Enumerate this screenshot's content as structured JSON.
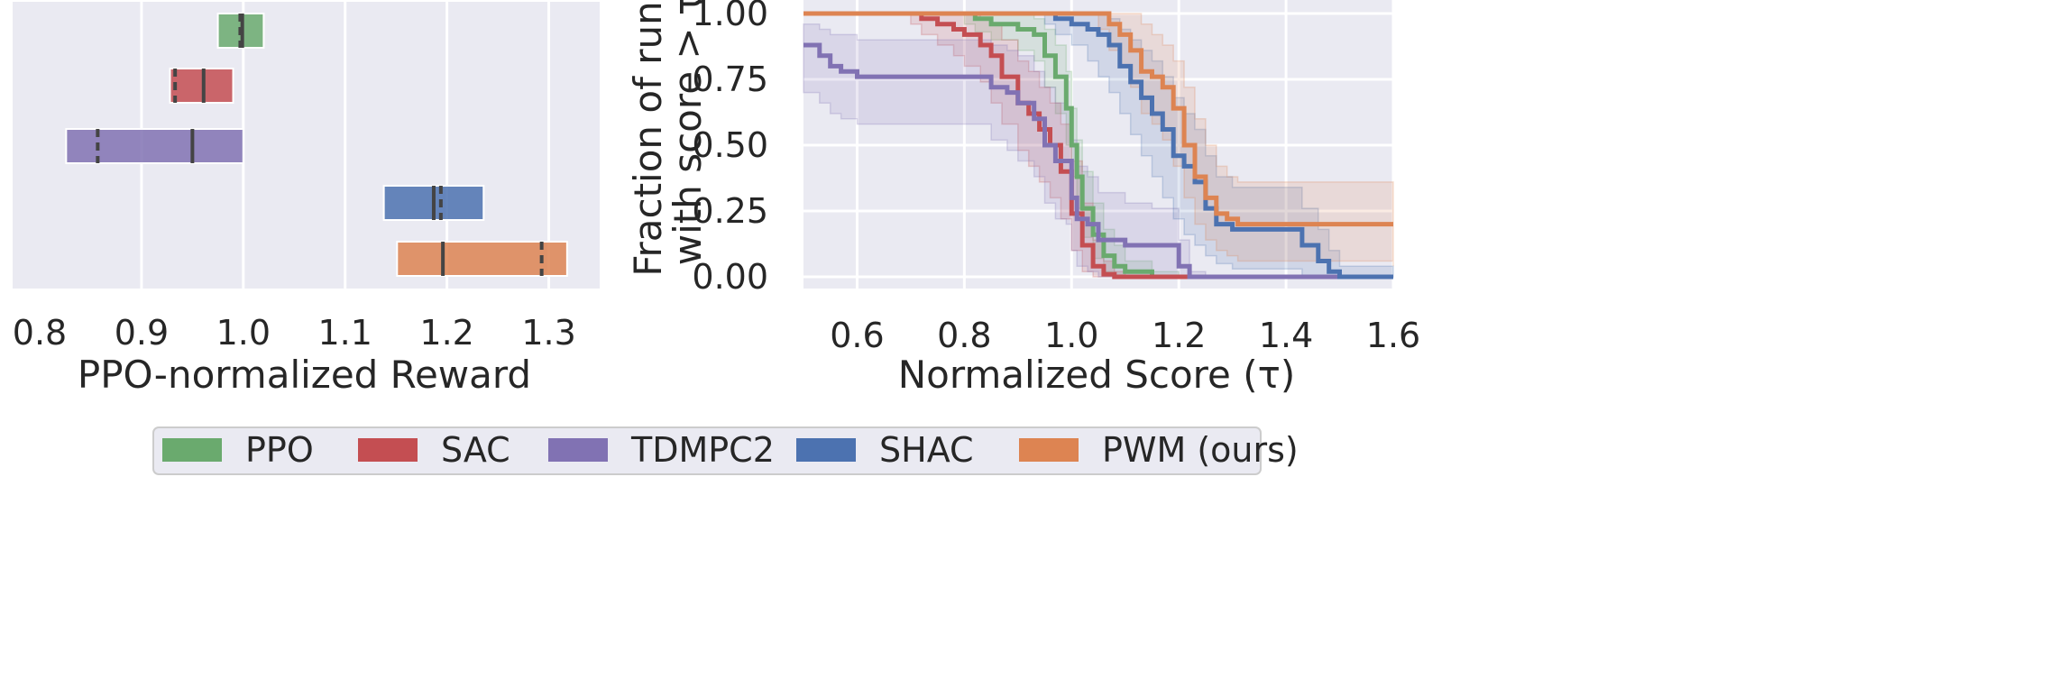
{
  "colors": {
    "PPO": "#6aaa6e",
    "SAC": "#c44e52",
    "TDMPC2": "#8172b3",
    "SHAC": "#4c72b0",
    "PWM": "#dd8452",
    "panel_bg": "#eaeaf2",
    "grid": "#ffffff",
    "text": "#262626",
    "median_line": "#444444"
  },
  "legend": {
    "items": [
      {
        "key": "PPO",
        "label": "PPO"
      },
      {
        "key": "SAC",
        "label": "SAC"
      },
      {
        "key": "TDMPC2",
        "label": "TDMPC2"
      },
      {
        "key": "SHAC",
        "label": "SHAC"
      },
      {
        "key": "PWM",
        "label": "PWM (ours)"
      }
    ],
    "placement": "bottom-center"
  },
  "chart_data": [
    {
      "type": "bar",
      "orientation": "horizontal-interval",
      "title": "",
      "xlabel": "PPO-normalized Reward",
      "ylabel": "",
      "xlim": [
        0.8,
        1.35
      ],
      "xticks": [
        0.8,
        0.9,
        1.0,
        1.1,
        1.2,
        1.3
      ],
      "xtick_labels": [
        "0.8",
        "0.9",
        "1.0",
        "1.1",
        "1.2",
        "1.3"
      ],
      "grid": true,
      "series": [
        {
          "key": "PPO",
          "ci": [
            0.975,
            1.02
          ],
          "solid": 0.999,
          "dashed": 0.997
        },
        {
          "key": "SAC",
          "ci": [
            0.928,
            0.99
          ],
          "solid": 0.961,
          "dashed": 0.933
        },
        {
          "key": "TDMPC2",
          "ci": [
            0.826,
            1.0
          ],
          "solid": 0.95,
          "dashed": 0.857
        },
        {
          "key": "SHAC",
          "ci": [
            1.138,
            1.236
          ],
          "solid": 1.187,
          "dashed": 1.194
        },
        {
          "key": "PWM",
          "ci": [
            1.151,
            1.318
          ],
          "solid": 1.196,
          "dashed": 1.293
        }
      ]
    },
    {
      "type": "line",
      "title": "",
      "xlabel": "Normalized Score (τ)",
      "ylabel_line1": "Fraction of runs",
      "ylabel_line2": "with score > τ",
      "xlim": [
        0.5,
        1.6
      ],
      "ylim": [
        0.0,
        1.0
      ],
      "xticks": [
        0.6,
        0.8,
        1.0,
        1.2,
        1.4,
        1.6
      ],
      "xtick_labels": [
        "0.6",
        "0.8",
        "1.0",
        "1.2",
        "1.4",
        "1.6"
      ],
      "yticks": [
        0.0,
        0.25,
        0.5,
        0.75,
        1.0
      ],
      "ytick_labels": [
        "0.00",
        "0.25",
        "0.50",
        "0.75",
        "1.00"
      ],
      "grid": true,
      "series": [
        {
          "key": "PPO",
          "x": [
            0.5,
            0.8,
            0.82,
            0.85,
            0.9,
            0.93,
            0.95,
            0.97,
            0.99,
            1.0,
            1.01,
            1.02,
            1.04,
            1.06,
            1.08,
            1.1,
            1.15,
            1.2,
            1.6
          ],
          "y": [
            1.0,
            1.0,
            0.98,
            0.96,
            0.94,
            0.92,
            0.84,
            0.76,
            0.64,
            0.5,
            0.38,
            0.26,
            0.16,
            0.08,
            0.04,
            0.02,
            0.0,
            0.0,
            0.0
          ],
          "lower": [
            1.0,
            0.96,
            0.93,
            0.9,
            0.86,
            0.82,
            0.72,
            0.62,
            0.5,
            0.38,
            0.26,
            0.15,
            0.07,
            0.02,
            0.0,
            0.0,
            0.0,
            0.0,
            0.0
          ],
          "upper": [
            1.0,
            1.0,
            1.0,
            1.0,
            1.0,
            0.98,
            0.94,
            0.88,
            0.78,
            0.64,
            0.52,
            0.4,
            0.28,
            0.18,
            0.12,
            0.06,
            0.02,
            0.0,
            0.0
          ]
        },
        {
          "key": "SAC",
          "x": [
            0.5,
            0.7,
            0.72,
            0.75,
            0.78,
            0.8,
            0.83,
            0.85,
            0.87,
            0.9,
            0.92,
            0.94,
            0.96,
            0.98,
            1.0,
            1.02,
            1.04,
            1.06,
            1.08,
            1.1,
            1.6
          ],
          "y": [
            1.0,
            1.0,
            0.98,
            0.96,
            0.94,
            0.92,
            0.88,
            0.84,
            0.76,
            0.66,
            0.62,
            0.56,
            0.5,
            0.4,
            0.24,
            0.12,
            0.04,
            0.01,
            0.0,
            0.0,
            0.0
          ],
          "lower": [
            1.0,
            0.96,
            0.92,
            0.88,
            0.84,
            0.8,
            0.74,
            0.66,
            0.58,
            0.48,
            0.42,
            0.36,
            0.3,
            0.22,
            0.1,
            0.02,
            0.0,
            0.0,
            0.0,
            0.0,
            0.0
          ],
          "upper": [
            1.0,
            1.0,
            1.0,
            1.0,
            1.0,
            1.0,
            0.98,
            0.96,
            0.9,
            0.82,
            0.78,
            0.72,
            0.66,
            0.58,
            0.44,
            0.28,
            0.14,
            0.06,
            0.02,
            0.0,
            0.0
          ]
        },
        {
          "key": "TDMPC2",
          "x": [
            0.5,
            0.51,
            0.53,
            0.55,
            0.57,
            0.6,
            0.7,
            0.8,
            0.85,
            0.88,
            0.9,
            0.93,
            0.95,
            0.97,
            0.99,
            1.0,
            1.01,
            1.03,
            1.05,
            1.1,
            1.15,
            1.2,
            1.22,
            1.25,
            1.6
          ],
          "y": [
            0.88,
            0.88,
            0.84,
            0.8,
            0.78,
            0.76,
            0.76,
            0.76,
            0.72,
            0.7,
            0.66,
            0.6,
            0.5,
            0.44,
            0.44,
            0.3,
            0.22,
            0.2,
            0.14,
            0.12,
            0.12,
            0.04,
            0.0,
            0.0,
            0.0
          ],
          "lower": [
            0.7,
            0.7,
            0.66,
            0.62,
            0.6,
            0.58,
            0.58,
            0.58,
            0.52,
            0.48,
            0.44,
            0.38,
            0.28,
            0.22,
            0.2,
            0.1,
            0.04,
            0.02,
            0.0,
            0.0,
            0.0,
            0.0,
            0.0,
            0.0,
            0.0
          ],
          "upper": [
            0.96,
            0.96,
            0.94,
            0.92,
            0.92,
            0.9,
            0.9,
            0.9,
            0.88,
            0.86,
            0.84,
            0.78,
            0.72,
            0.66,
            0.64,
            0.52,
            0.42,
            0.38,
            0.32,
            0.28,
            0.26,
            0.14,
            0.02,
            0.0,
            0.0
          ]
        },
        {
          "key": "SHAC",
          "x": [
            0.5,
            0.95,
            0.97,
            1.0,
            1.03,
            1.05,
            1.07,
            1.09,
            1.11,
            1.13,
            1.15,
            1.17,
            1.19,
            1.21,
            1.23,
            1.25,
            1.27,
            1.3,
            1.4,
            1.43,
            1.46,
            1.48,
            1.5,
            1.6
          ],
          "y": [
            1.0,
            1.0,
            0.98,
            0.96,
            0.94,
            0.92,
            0.88,
            0.8,
            0.74,
            0.68,
            0.62,
            0.56,
            0.46,
            0.42,
            0.36,
            0.26,
            0.2,
            0.18,
            0.18,
            0.12,
            0.06,
            0.02,
            0.0,
            0.0
          ],
          "lower": [
            1.0,
            0.96,
            0.92,
            0.88,
            0.82,
            0.76,
            0.7,
            0.62,
            0.54,
            0.46,
            0.38,
            0.3,
            0.22,
            0.16,
            0.12,
            0.08,
            0.05,
            0.03,
            0.03,
            0.0,
            0.0,
            0.0,
            0.0,
            0.0
          ],
          "upper": [
            1.0,
            1.0,
            1.0,
            1.0,
            1.0,
            1.0,
            0.98,
            0.94,
            0.9,
            0.86,
            0.82,
            0.76,
            0.68,
            0.62,
            0.56,
            0.46,
            0.38,
            0.34,
            0.34,
            0.26,
            0.18,
            0.1,
            0.04,
            0.04
          ]
        },
        {
          "key": "PWM",
          "x": [
            0.5,
            1.05,
            1.07,
            1.09,
            1.11,
            1.13,
            1.15,
            1.17,
            1.19,
            1.21,
            1.23,
            1.25,
            1.27,
            1.29,
            1.31,
            1.6
          ],
          "y": [
            1.0,
            1.0,
            0.96,
            0.92,
            0.86,
            0.78,
            0.76,
            0.72,
            0.64,
            0.5,
            0.38,
            0.3,
            0.24,
            0.22,
            0.2,
            0.2
          ],
          "lower": [
            1.0,
            0.94,
            0.86,
            0.8,
            0.72,
            0.62,
            0.58,
            0.52,
            0.42,
            0.3,
            0.2,
            0.14,
            0.1,
            0.08,
            0.06,
            0.04
          ],
          "upper": [
            1.0,
            1.0,
            1.0,
            1.0,
            1.0,
            0.96,
            0.92,
            0.88,
            0.82,
            0.72,
            0.6,
            0.5,
            0.42,
            0.38,
            0.36,
            0.36
          ]
        }
      ]
    }
  ]
}
